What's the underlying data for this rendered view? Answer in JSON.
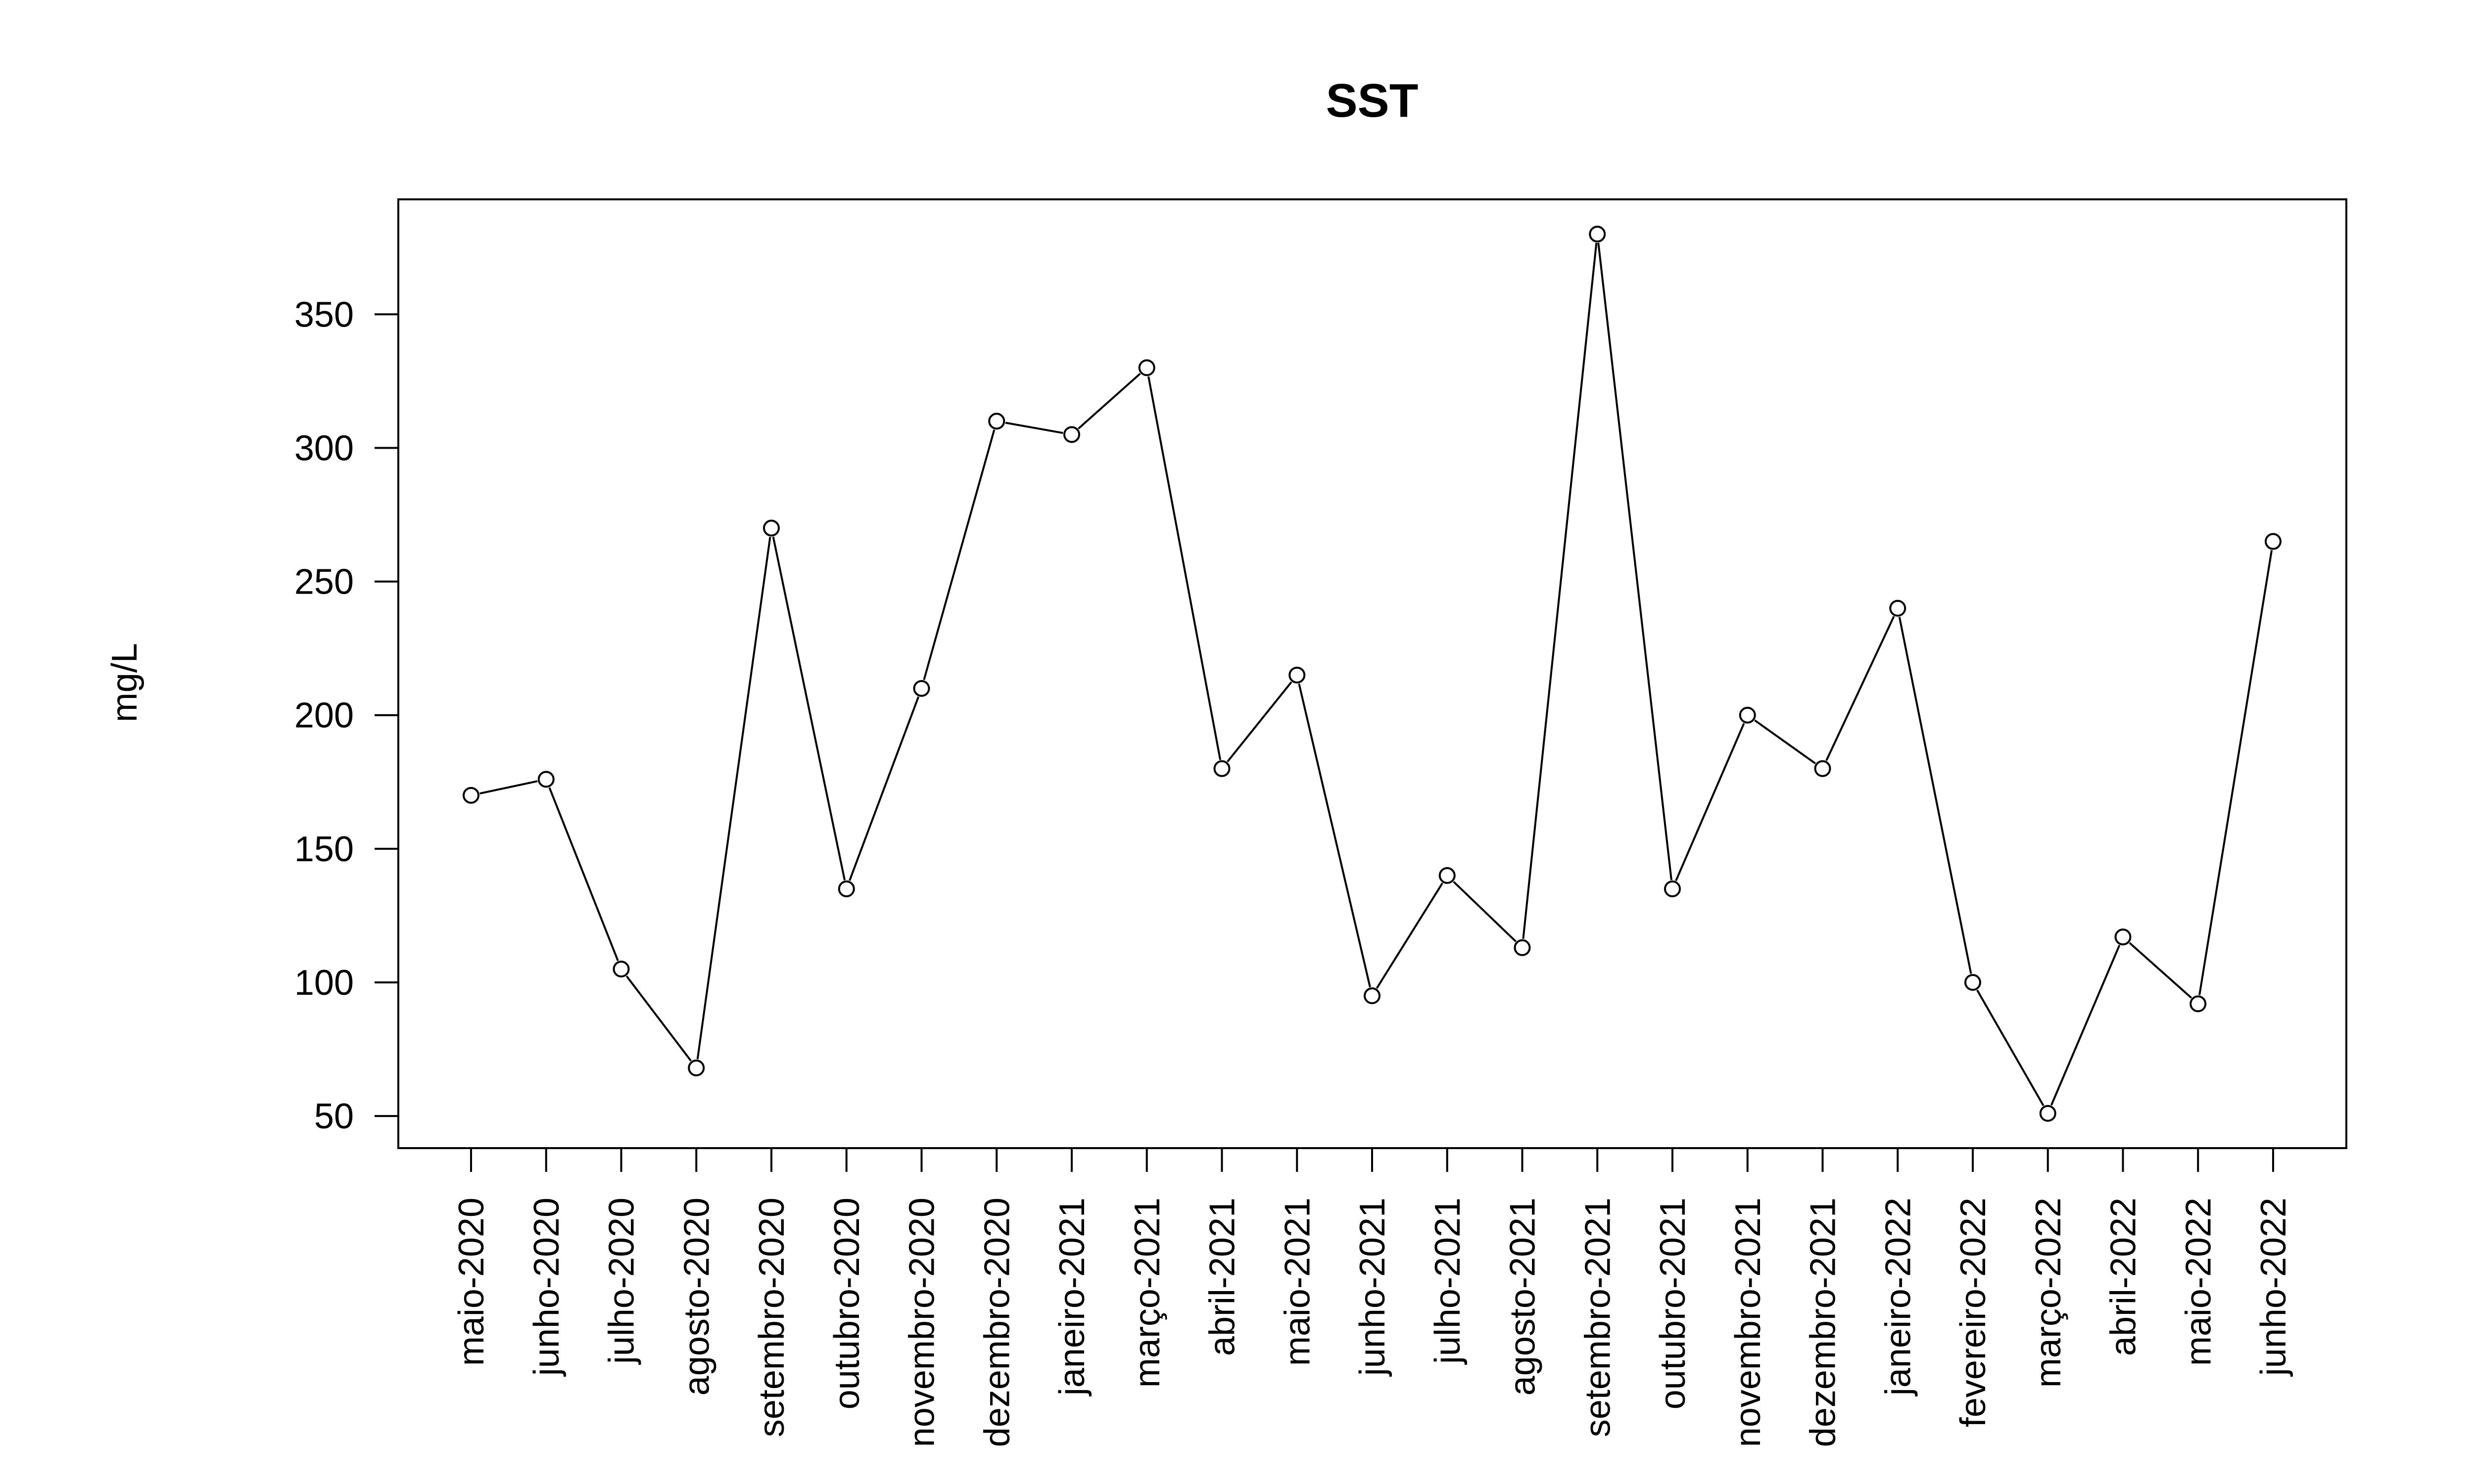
{
  "chart_data": {
    "type": "line",
    "title": "SST",
    "xlabel": "",
    "ylabel": "mg/L",
    "ylim": [
      38,
      393
    ],
    "yticks": [
      50,
      100,
      150,
      200,
      250,
      300,
      350
    ],
    "grid": false,
    "legend": "none",
    "markers": "open-circle",
    "colors": {
      "line": "#000000",
      "background": "#ffffff"
    },
    "categories": [
      "maio-2020",
      "junho-2020",
      "julho-2020",
      "agosto-2020",
      "setembro-2020",
      "outubro-2020",
      "novembro-2020",
      "dezembro-2020",
      "janeiro-2021",
      "março-2021",
      "abril-2021",
      "maio-2021",
      "junho-2021",
      "julho-2021",
      "agosto-2021",
      "setembro-2021",
      "outubro-2021",
      "novembro-2021",
      "dezembro-2021",
      "janeiro-2022",
      "fevereiro-2022",
      "março-2022",
      "abril-2022",
      "maio-2022",
      "junho-2022"
    ],
    "series": [
      {
        "values": [
          170,
          176,
          105,
          68,
          270,
          135,
          210,
          310,
          305,
          330,
          180,
          215,
          95,
          140,
          113,
          380,
          135,
          200,
          180,
          240,
          100,
          51,
          117,
          92,
          265
        ]
      }
    ]
  }
}
